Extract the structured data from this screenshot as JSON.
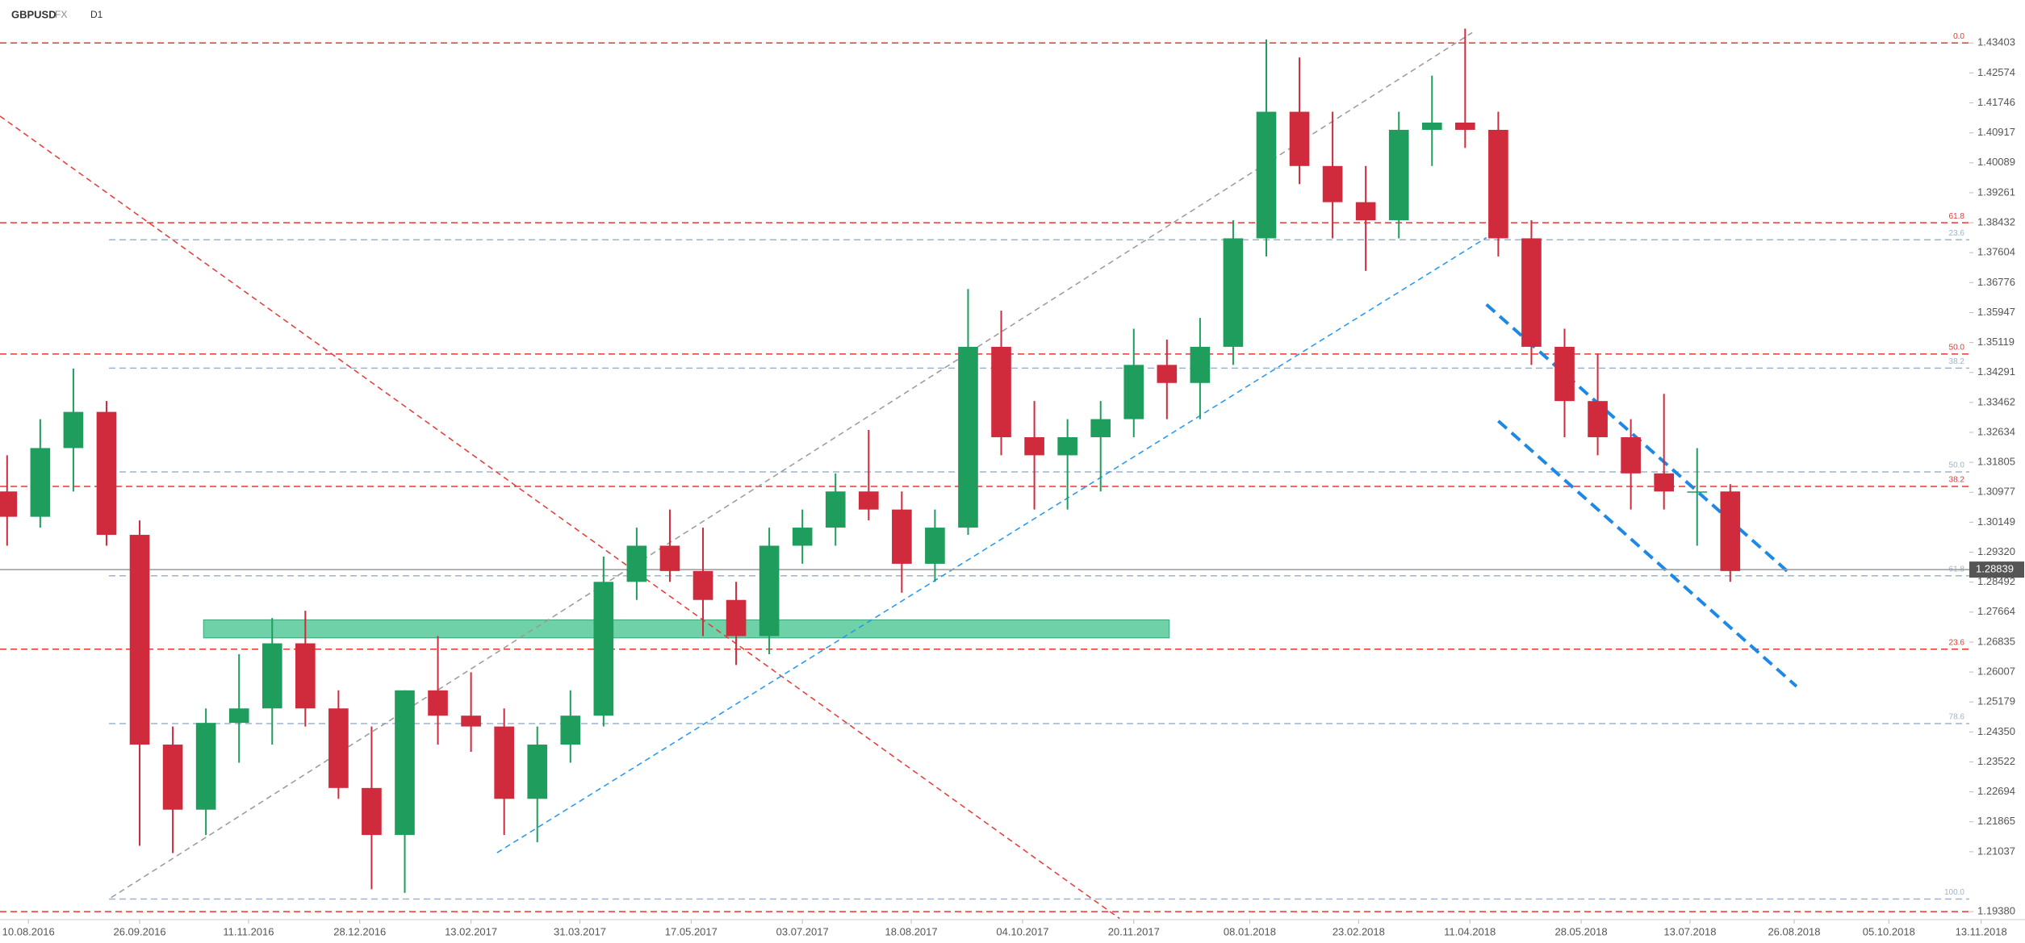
{
  "header": {
    "symbol": "GBPUSD",
    "market": "FX",
    "timeframe": "D1"
  },
  "chart_data": {
    "type": "candlestick",
    "x": [
      "2016-08-01",
      "2016-08-15",
      "2016-08-29",
      "2016-09-12",
      "2016-09-26",
      "2016-10-10",
      "2016-10-24",
      "2016-11-07",
      "2016-11-21",
      "2016-12-05",
      "2016-12-19",
      "2017-01-02",
      "2017-01-16",
      "2017-01-30",
      "2017-02-13",
      "2017-02-27",
      "2017-03-13",
      "2017-03-27",
      "2017-04-10",
      "2017-04-24",
      "2017-05-08",
      "2017-05-22",
      "2017-06-05",
      "2017-06-19",
      "2017-07-03",
      "2017-07-17",
      "2017-07-31",
      "2017-08-14",
      "2017-08-28",
      "2017-09-11",
      "2017-09-25",
      "2017-10-09",
      "2017-10-23",
      "2017-11-06",
      "2017-11-20",
      "2017-12-04",
      "2017-12-18",
      "2018-01-01",
      "2018-01-15",
      "2018-01-29",
      "2018-02-12",
      "2018-02-26",
      "2018-03-12",
      "2018-03-26",
      "2018-04-09",
      "2018-04-23",
      "2018-05-07",
      "2018-05-21",
      "2018-06-04",
      "2018-06-18",
      "2018-07-02",
      "2018-07-16",
      "2018-07-30"
    ],
    "open": [
      1.31,
      1.303,
      1.322,
      1.332,
      1.298,
      1.24,
      1.222,
      1.246,
      1.25,
      1.268,
      1.25,
      1.228,
      1.215,
      1.255,
      1.248,
      1.245,
      1.225,
      1.24,
      1.248,
      1.285,
      1.295,
      1.288,
      1.28,
      1.27,
      1.295,
      1.3,
      1.31,
      1.305,
      1.29,
      1.3,
      1.35,
      1.325,
      1.32,
      1.325,
      1.33,
      1.345,
      1.34,
      1.35,
      1.38,
      1.415,
      1.4,
      1.39,
      1.385,
      1.41,
      1.412,
      1.41,
      1.38,
      1.35,
      1.335,
      1.325,
      1.315,
      1.31,
      1.31
    ],
    "high": [
      1.32,
      1.33,
      1.344,
      1.335,
      1.302,
      1.245,
      1.25,
      1.265,
      1.275,
      1.277,
      1.255,
      1.245,
      1.255,
      1.27,
      1.26,
      1.25,
      1.245,
      1.255,
      1.292,
      1.3,
      1.305,
      1.3,
      1.285,
      1.3,
      1.305,
      1.315,
      1.327,
      1.31,
      1.305,
      1.366,
      1.36,
      1.335,
      1.33,
      1.335,
      1.355,
      1.352,
      1.358,
      1.385,
      1.435,
      1.43,
      1.415,
      1.4,
      1.415,
      1.425,
      1.438,
      1.415,
      1.385,
      1.355,
      1.348,
      1.33,
      1.337,
      1.322,
      1.312
    ],
    "low": [
      1.295,
      1.3,
      1.31,
      1.295,
      1.212,
      1.21,
      1.215,
      1.235,
      1.24,
      1.245,
      1.225,
      1.2,
      1.199,
      1.24,
      1.238,
      1.215,
      1.213,
      1.235,
      1.245,
      1.28,
      1.285,
      1.27,
      1.262,
      1.265,
      1.29,
      1.295,
      1.302,
      1.282,
      1.285,
      1.298,
      1.32,
      1.305,
      1.305,
      1.31,
      1.325,
      1.33,
      1.33,
      1.345,
      1.375,
      1.395,
      1.38,
      1.371,
      1.38,
      1.4,
      1.405,
      1.375,
      1.345,
      1.325,
      1.32,
      1.305,
      1.305,
      1.295,
      1.285
    ],
    "close": [
      1.303,
      1.322,
      1.332,
      1.298,
      1.24,
      1.222,
      1.246,
      1.25,
      1.268,
      1.25,
      1.228,
      1.215,
      1.255,
      1.248,
      1.245,
      1.225,
      1.24,
      1.248,
      1.285,
      1.295,
      1.288,
      1.28,
      1.27,
      1.295,
      1.3,
      1.31,
      1.305,
      1.29,
      1.3,
      1.35,
      1.325,
      1.32,
      1.325,
      1.33,
      1.345,
      1.34,
      1.35,
      1.38,
      1.415,
      1.4,
      1.39,
      1.385,
      1.41,
      1.412,
      1.41,
      1.38,
      1.35,
      1.335,
      1.325,
      1.315,
      1.31,
      1.31,
      1.288
    ],
    "up_color": "#1f9d5c",
    "down_color": "#cf2b3c",
    "xlim": [
      "2016-07-29",
      "2018-11-08"
    ],
    "xticks": [
      {
        "value": "2016-08-10",
        "label": "10.08.2016"
      },
      {
        "value": "2016-09-26",
        "label": "26.09.2016"
      },
      {
        "value": "2016-11-11",
        "label": "11.11.2016"
      },
      {
        "value": "2016-12-28",
        "label": "28.12.2016"
      },
      {
        "value": "2017-02-13",
        "label": "13.02.2017"
      },
      {
        "value": "2017-03-31",
        "label": "31.03.2017"
      },
      {
        "value": "2017-05-17",
        "label": "17.05.2017"
      },
      {
        "value": "2017-07-03",
        "label": "03.07.2017"
      },
      {
        "value": "2017-08-18",
        "label": "18.08.2017"
      },
      {
        "value": "2017-10-04",
        "label": "04.10.2017"
      },
      {
        "value": "2017-11-20",
        "label": "20.11.2017"
      },
      {
        "value": "2018-01-08",
        "label": "08.01.2018"
      },
      {
        "value": "2018-02-23",
        "label": "23.02.2018"
      },
      {
        "value": "2018-04-11",
        "label": "11.04.2018"
      },
      {
        "value": "2018-05-28",
        "label": "28.05.2018"
      },
      {
        "value": "2018-07-13",
        "label": "13.07.2018"
      },
      {
        "value": "2018-08-26",
        "label": "26.08.2018"
      },
      {
        "value": "2018-10-05",
        "label": "05.10.2018"
      },
      {
        "value": "2018-11-13",
        "label": "13.11.2018"
      }
    ],
    "ylim": [
      1.1916,
      1.4381
    ],
    "yticks": [
      1.43403,
      1.42574,
      1.41746,
      1.40917,
      1.40089,
      1.39261,
      1.38432,
      1.37604,
      1.36776,
      1.35947,
      1.35119,
      1.34291,
      1.33462,
      1.32634,
      1.31805,
      1.30977,
      1.30149,
      {
        "value": 1.2932,
        "label": "1.29320"
      },
      1.28492,
      1.27664,
      1.26835,
      1.26007,
      1.25179,
      {
        "value": 1.2435,
        "label": "1.24350"
      },
      1.23522,
      1.22694,
      1.21865,
      1.21037,
      {
        "value": 1.1938,
        "label": "1.19380"
      }
    ],
    "last": 1.28839,
    "levels": [
      {
        "value": 1.43403,
        "label": "0.0",
        "color": "#e53935"
      },
      {
        "value": 1.3843,
        "label": "61.8",
        "color": "#e53935"
      },
      {
        "value": 1.348,
        "label": "50.0",
        "color": "#e53935"
      },
      {
        "value": 1.3114,
        "label": "38.2",
        "color": "#e53935"
      },
      {
        "value": 1.2664,
        "label": "23.6",
        "color": "#e53935"
      },
      {
        "value": 1.1938,
        "color": "#e53935"
      },
      {
        "value": 1.3796,
        "label": "23.6",
        "color": "#9fb3cc"
      },
      {
        "value": 1.3441,
        "label": "38.2",
        "color": "#9fb3cc"
      },
      {
        "value": 1.3154,
        "label": "50.0",
        "color": "#9fb3cc"
      },
      {
        "value": 1.2867,
        "label": "61.8",
        "color": "#9fb3cc"
      },
      {
        "value": 1.2458,
        "label": "78.6",
        "color": "#9fb3cc"
      },
      {
        "value": 1.1973,
        "label": "100.0",
        "color": "#9fb3cc"
      }
    ],
    "trendlines": [
      {
        "x": [
          "2016-07-29",
          "2017-11-14"
        ],
        "y": [
          1.4138,
          1.1919
        ],
        "color": "#e53935"
      },
      {
        "x": [
          "2016-09-14",
          "2018-04-12"
        ],
        "y": [
          1.1977,
          1.4369
        ],
        "color": "#999999"
      },
      {
        "x": [
          "2017-02-24",
          "2018-04-18"
        ],
        "y": [
          1.2101,
          1.3802
        ],
        "color": "#2196f3"
      },
      {
        "x": [
          "2018-04-18",
          "2018-08-23"
        ],
        "y": [
          1.3617,
          1.288
        ],
        "color": "#1e88e5",
        "width": 4
      },
      {
        "x": [
          "2018-04-23",
          "2018-08-27"
        ],
        "y": [
          1.3295,
          1.2561
        ],
        "color": "#1e88e5",
        "width": 4
      }
    ],
    "zone": {
      "x": [
        "2016-10-23",
        "2017-12-05"
      ],
      "y": [
        1.2695,
        1.2745
      ],
      "color": "#6fd1a8"
    }
  }
}
